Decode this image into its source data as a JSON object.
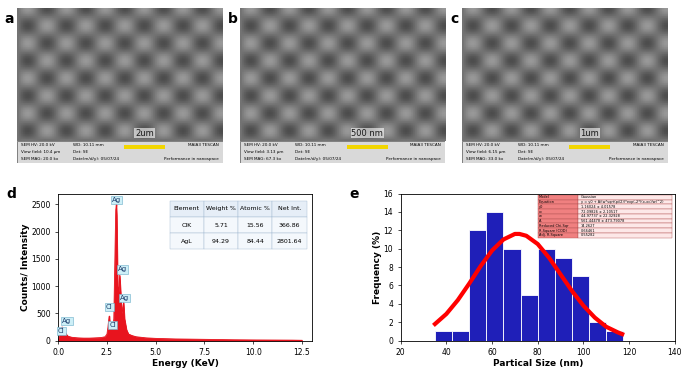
{
  "images": [
    {
      "panel": "a",
      "scale_bar": "2um",
      "info": {
        "hv": "SEM HV: 20.0 kV",
        "wd": "WD: 10.11 mm",
        "brand": "MAIA3 TESCAN",
        "view": "View field: 10.4 µm",
        "det": "Det: SE",
        "mag": "SEM MAG: 20.0 kx",
        "date": "Date(m/d/y): 05/07/24",
        "lab": "Performance in nanospace"
      }
    },
    {
      "panel": "b",
      "scale_bar": "500 nm",
      "info": {
        "hv": "SEM HV: 20.0 kV",
        "wd": "WD: 10.11 mm",
        "brand": "MAIA3 TESCAN",
        "view": "View field: 3.13 µm",
        "det": "Det: SE",
        "mag": "SEM MAG: 67.3 kx",
        "date": "Date(m/d/y): 05/07/24",
        "lab": "Performance in nanospace"
      }
    },
    {
      "panel": "c",
      "scale_bar": "1um",
      "info": {
        "hv": "SEM HV: 20.0 kV",
        "wd": "WD: 10.11 mm",
        "brand": "MAIA3 TESCAN",
        "view": "View field: 6.15 µm",
        "det": "Det: SE",
        "mag": "SEM MAG: 33.0 kx",
        "date": "Date(m/d/y): 05/07/24",
        "lab": "Performance in nanospace"
      }
    }
  ],
  "chart_data": [
    {
      "panel": "d",
      "type": "area",
      "color": "#e8141e",
      "x_label": "Energy (KeV)",
      "y_label": "Counts/ Intensity",
      "x": [
        0.0,
        0.1,
        0.2,
        0.3,
        0.4,
        0.5,
        0.7,
        1.0,
        1.3,
        1.6,
        1.9,
        2.2,
        2.4,
        2.5,
        2.55,
        2.6,
        2.62,
        2.65,
        2.7,
        2.75,
        2.8,
        2.82,
        2.85,
        2.9,
        2.95,
        2.98,
        3.0,
        3.05,
        3.1,
        3.15,
        3.2,
        3.25,
        3.3,
        3.35,
        3.4,
        3.5,
        3.6,
        3.8,
        4.0,
        4.5,
        5,
        5.5,
        6,
        7,
        8,
        9,
        10,
        11,
        12,
        12.5
      ],
      "values": [
        0,
        150,
        250,
        180,
        120,
        80,
        60,
        50,
        45,
        45,
        50,
        55,
        70,
        120,
        250,
        420,
        450,
        300,
        200,
        250,
        340,
        300,
        400,
        1400,
        2400,
        2500,
        2300,
        1000,
        900,
        1200,
        900,
        500,
        600,
        700,
        400,
        200,
        120,
        90,
        70,
        50,
        40,
        35,
        30,
        25,
        20,
        15,
        12,
        10,
        8,
        5
      ],
      "xlim": [
        0,
        13
      ],
      "xticks": [
        {
          "value": 0,
          "label": "0.0"
        },
        {
          "value": 2.5,
          "label": "2.5"
        },
        {
          "value": 5,
          "label": "5.0"
        },
        {
          "value": 7.5,
          "label": "7.5"
        },
        {
          "value": 10,
          "label": "10.0"
        },
        {
          "value": 12.5,
          "label": "12.5"
        }
      ],
      "ylim": [
        0,
        2700
      ],
      "yticks": [
        0,
        500,
        1000,
        1500,
        2000,
        2500
      ],
      "annotations": [
        {
          "text": "Ag",
          "x": 0.45,
          "y": 300
        },
        {
          "text": "Cl",
          "x": 0.15,
          "y": 120
        },
        {
          "text": "Ag",
          "x": 2.98,
          "y": 2520
        },
        {
          "text": "Ag",
          "x": 3.3,
          "y": 1250
        },
        {
          "text": "Cl",
          "x": 2.62,
          "y": 560
        },
        {
          "text": "Cl",
          "x": 2.8,
          "y": 230
        },
        {
          "text": "Ag",
          "x": 3.4,
          "y": 720
        }
      ],
      "table": {
        "header": [
          "Element",
          "Weight %",
          "Atomic %",
          "Net Int."
        ],
        "rows": [
          [
            "ClK",
            5.71,
            15.56,
            366.86
          ],
          [
            "AgL",
            94.29,
            84.44,
            2801.64
          ]
        ]
      }
    },
    {
      "panel": "e",
      "type": "histogram",
      "color": "#1f1fb8",
      "x_label": "Partical Size (nm)",
      "y_label": "Frequency (%)",
      "bins": [
        35,
        42.5,
        50,
        57.5,
        65,
        72.5,
        80,
        87.5,
        95,
        102.5,
        110,
        117.5
      ],
      "counts": [
        1,
        1,
        12,
        14,
        10,
        5,
        10,
        9,
        7,
        2,
        1
      ],
      "fit": {
        "color": "#ff0000",
        "x": [
          35,
          40,
          45,
          50,
          55,
          60,
          65,
          70,
          72,
          75,
          80,
          85,
          90,
          95,
          100,
          105,
          110,
          115,
          117
        ],
        "values": [
          1.8,
          2.9,
          4.4,
          6.2,
          8.1,
          9.8,
          11.0,
          11.6,
          11.6,
          11.4,
          10.5,
          9.0,
          7.2,
          5.4,
          3.8,
          2.5,
          1.5,
          0.9,
          0.7
        ]
      },
      "xlim": [
        20,
        140
      ],
      "xticks": [
        20,
        40,
        60,
        80,
        100,
        120,
        140
      ],
      "ylim": [
        0,
        16
      ],
      "yticks": [
        0,
        2,
        4,
        6,
        8,
        10,
        12,
        14,
        16
      ],
      "table": {
        "rows": [
          [
            "Model",
            "Gaussian"
          ],
          [
            "Equation",
            "y = y0 + A/(w*sqrt(pi/2))*exp(-2*((x-xc)/w)^2)"
          ],
          [
            "y0",
            "1.16024 ± 4.01578"
          ],
          [
            "xc",
            "72.09826 ± 2.10517"
          ],
          [
            "w",
            "44.97737 ± 22.32928"
          ],
          [
            "A",
            "561.44478 ± 473.79078"
          ],
          [
            "Reduced Chi-Sqr",
            "14.2627"
          ],
          [
            "R-Square (COD)",
            "0.66461"
          ],
          [
            "Adj. R-Square",
            "0.55282"
          ]
        ]
      }
    }
  ]
}
